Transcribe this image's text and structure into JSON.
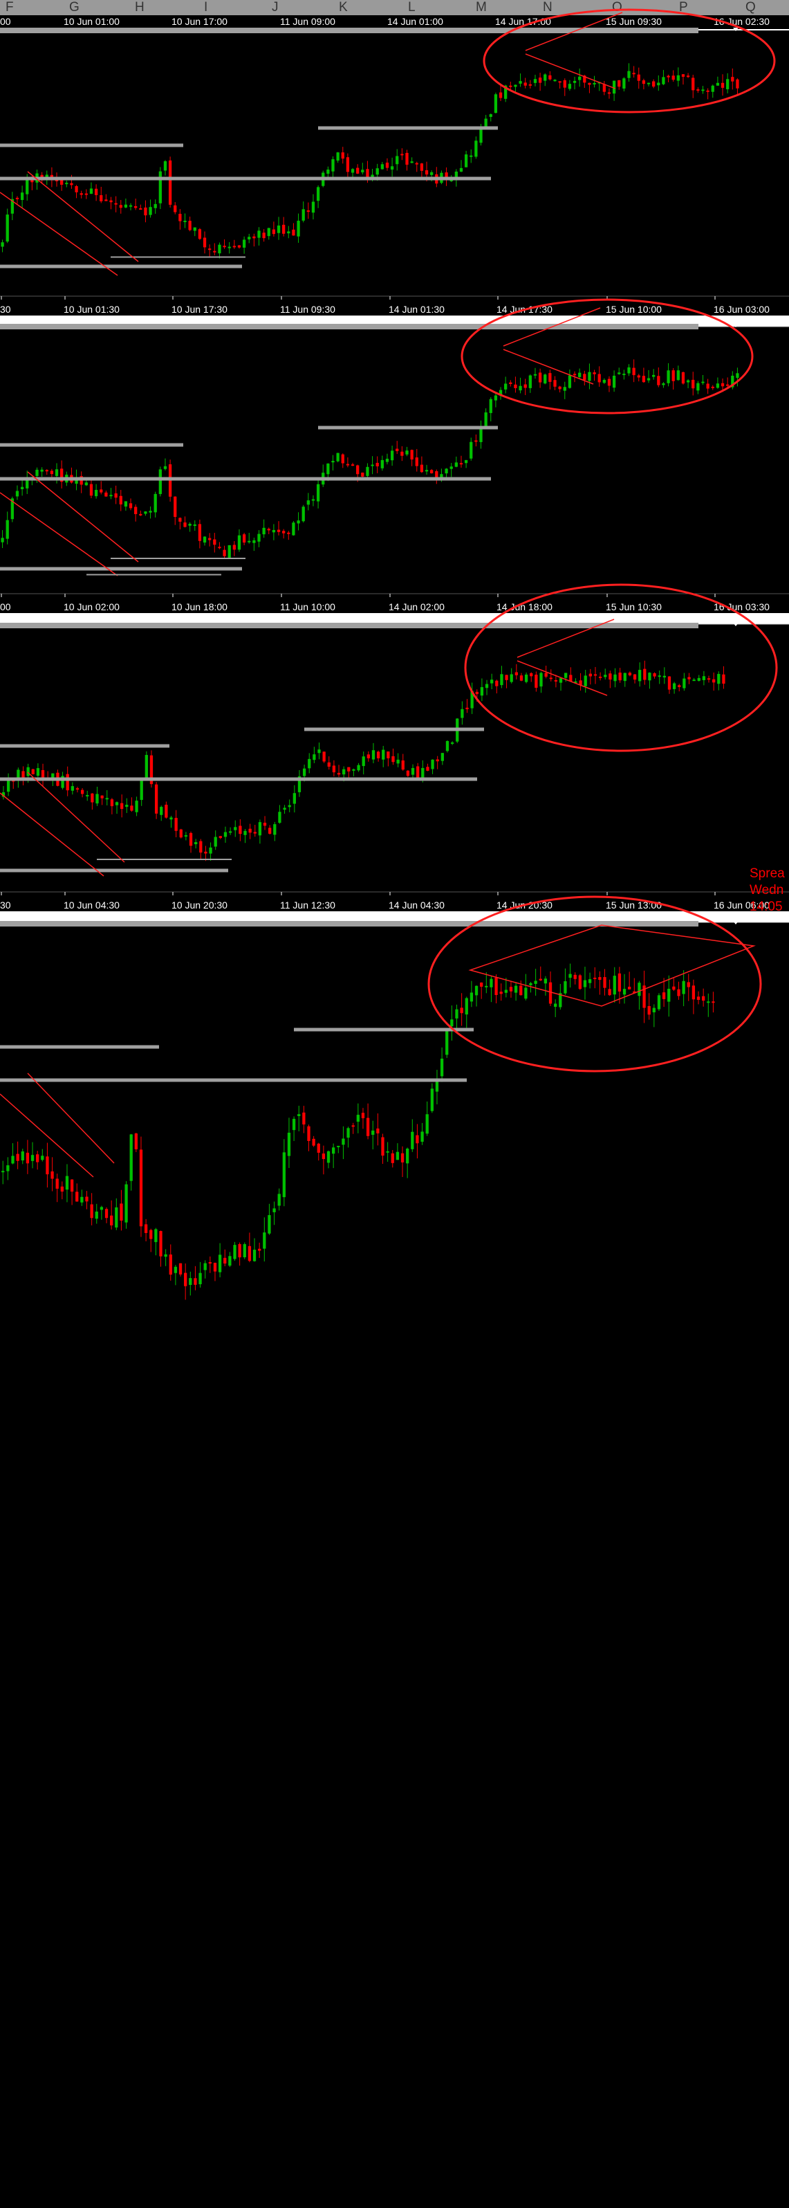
{
  "colors": {
    "background": "#000000",
    "bull_candle": "#00c000",
    "bear_candle": "#ff0000",
    "level_line": "#a0a0a0",
    "annotation": "#ff2020",
    "axis_text": "#ffffff",
    "header_bg": "#9a9a9a",
    "header_text": "#333333",
    "divider": "#ffffff"
  },
  "spreadsheet_header": {
    "columns": [
      "F",
      "G",
      "H",
      "I",
      "J",
      "K",
      "L",
      "M",
      "N",
      "O",
      "P",
      "Q"
    ],
    "top_labels": [
      "00",
      "10 Jun 01:00",
      "10 Jun 17:00",
      "11 Jun 09:00",
      "14 Jun 01:00",
      "14 Jun 17:00",
      "15 Jun 09:30",
      "16 Jun 02:30"
    ]
  },
  "chart_data": [
    {
      "type": "candlestick",
      "panel": 1,
      "x_tick_labels": [
        "30",
        "10 Jun 01:30",
        "10 Jun 17:30",
        "11 Jun 09:30",
        "14 Jun 01:30",
        "14 Jun 17:30",
        "15 Jun 10:00",
        "16 Jun 03:00"
      ],
      "series": [
        {
          "name": "",
          "values": []
        }
      ],
      "annotations": [
        "ellipse-consolidation",
        "horizontal-levels",
        "trendlines"
      ]
    },
    {
      "type": "candlestick",
      "panel": 2,
      "x_tick_labels": [
        "00",
        "10 Jun 02:00",
        "10 Jun 18:00",
        "11 Jun 10:00",
        "14 Jun 02:00",
        "14 Jun 18:00",
        "15 Jun 10:30",
        "16 Jun 03:30"
      ],
      "annotations": [
        "ellipse-consolidation",
        "horizontal-levels",
        "trendlines"
      ]
    },
    {
      "type": "candlestick",
      "panel": 3,
      "x_tick_labels": [
        "30",
        "10 Jun 04:30",
        "10 Jun 20:30",
        "11 Jun 12:30",
        "14 Jun 04:30",
        "14 Jun 20:30",
        "15 Jun 13:00",
        "16 Jun 06:00"
      ],
      "overlay_text": [
        "Sprea",
        "Wedn",
        "14:05"
      ],
      "annotations": [
        "ellipse-consolidation",
        "horizontal-levels",
        "trendlines"
      ]
    },
    {
      "type": "candlestick",
      "panel": 4,
      "x_tick_labels": [],
      "annotations": [
        "ellipse-consolidation",
        "diamond-pattern",
        "horizontal-levels"
      ]
    }
  ]
}
